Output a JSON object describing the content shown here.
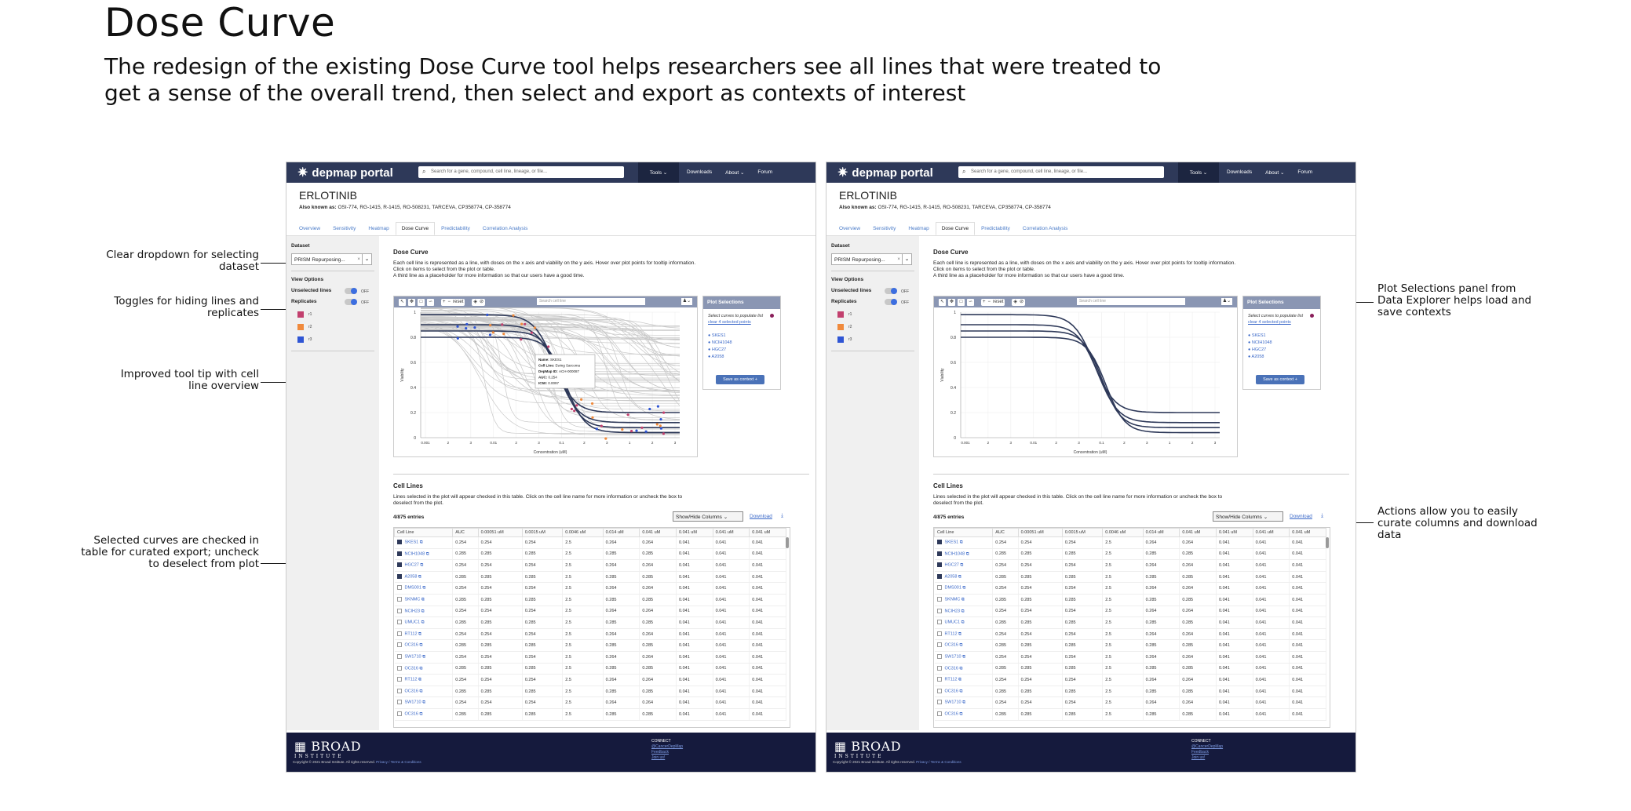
{
  "page": {
    "title": "Dose Curve",
    "subtitle": "The redesign of the existing Dose Curve tool helps researchers see all lines that were treated to get a sense of the overall trend, then select and export as contexts of interest"
  },
  "annotations": {
    "left": [
      "Clear dropdown for selecting dataset",
      "Toggles for hiding lines and replicates",
      "Improved tool tip with cell line overview",
      "Selected curves are checked in table for curated export; uncheck to deselect from plot"
    ],
    "right": [
      "Plot Selections panel from Data Explorer helps load and save contexts",
      "Actions allow you to easily curate columns and download data"
    ]
  },
  "app": {
    "logo": "depmap portal",
    "search_placeholder": "Search for a gene, compound, cell line, lineage, or file...",
    "nav": {
      "tools": "Tools ⌄",
      "downloads": "Downloads",
      "about": "About ⌄",
      "forum": "Forum"
    },
    "compound": "ERLOTINIB",
    "aka_label": "Also known as:",
    "aka_value": "OSI-774, RG-1415, R-1415, RO-508231, TARCEVA, CP358774, CP-358774",
    "tabs": [
      "Overview",
      "Sensitivity",
      "Heatmap",
      "Dose Curve",
      "Predictability",
      "Correlation Analysis"
    ],
    "active_tab": "Dose Curve",
    "sidebar": {
      "dataset_label": "Dataset",
      "dataset_value": "PRISM Repurposing...",
      "view_options": "View Options",
      "unselected_lines": "Unselected lines",
      "replicates": "Replicates",
      "off": "OFF",
      "replicate_items": [
        {
          "label": "r1",
          "color": "#c2406e"
        },
        {
          "label": "r2",
          "color": "#f08a3c"
        },
        {
          "label": "r3",
          "color": "#2f55d4"
        }
      ]
    },
    "main": {
      "heading": "Dose Curve",
      "description": "Each cell line is represented as a line, with doses on the x axis and viability on the y axis. Hover over plot points for tooltip information. Click on items to select from the plot or table.",
      "description2": "A third line as a placeholder for more information so that our users have a good time.",
      "toolbar_reset": "reset",
      "toolbar_search": "Search cell line"
    },
    "plot": {
      "ylabel": "Viability",
      "xlabel": "Concentration (uM)",
      "yticks": [
        "0",
        "0.2",
        "0.4",
        "0.6",
        "0.8",
        "1"
      ],
      "xticks": [
        "0.001",
        "2",
        "3",
        "0.01",
        "2",
        "3",
        "0.1",
        "2",
        "3",
        "1",
        "2",
        "3"
      ]
    },
    "tooltip": {
      "name_label": "Name:",
      "name": "SKES1",
      "cl_label": "Cell Line:",
      "cl": "Ewing Sarcoma",
      "id_label": "DepMap ID:",
      "id": "ACH-000087",
      "auc_label": "AUC:",
      "auc": "0.254",
      "ic50_label": "IC50:",
      "ic50": "0.0097"
    },
    "plot_selections": {
      "title": "Plot Selections",
      "hint": "Select curves to populate list",
      "clear": "clear 4 selected points",
      "items": [
        "SKES1",
        "NCIH1048",
        "HGC27",
        "A2058"
      ],
      "save": "Save as context +"
    },
    "cell_lines": {
      "heading": "Cell Lines",
      "description": "Lines selected in the plot will appear checked in this table. Click on the cell line name for more information or uncheck the box to deselect from the plot.",
      "entries": "4/875 entries",
      "show_hide": "Show/Hide Columns",
      "download": "Download",
      "columns": [
        "Cell Line",
        "AUC",
        "0.00051 uM",
        "0.0015 uM",
        "0.0046 uM",
        "0.014 uM",
        "0.041 uM",
        "0.041 uM",
        "0.041 uM",
        "0.041 uM"
      ],
      "rows": [
        {
          "name": "SKES1",
          "checked": true,
          "vals": [
            "0.254",
            "0.254",
            "0.254",
            "2.5",
            "0.264",
            "0.264",
            "0.041",
            "0.041",
            "0.041"
          ]
        },
        {
          "name": "NCIH1048",
          "checked": true,
          "vals": [
            "0.285",
            "0.285",
            "0.285",
            "2.5",
            "0.285",
            "0.285",
            "0.041",
            "0.041",
            "0.041"
          ]
        },
        {
          "name": "HGC27",
          "checked": true,
          "vals": [
            "0.254",
            "0.254",
            "0.254",
            "2.5",
            "0.264",
            "0.264",
            "0.041",
            "0.041",
            "0.041"
          ]
        },
        {
          "name": "A2058",
          "checked": true,
          "vals": [
            "0.285",
            "0.285",
            "0.285",
            "2.5",
            "0.285",
            "0.285",
            "0.041",
            "0.041",
            "0.041"
          ]
        },
        {
          "name": "DMS001",
          "checked": false,
          "vals": [
            "0.254",
            "0.254",
            "0.254",
            "2.5",
            "0.264",
            "0.264",
            "0.041",
            "0.041",
            "0.041"
          ]
        },
        {
          "name": "SKNMC",
          "checked": false,
          "vals": [
            "0.285",
            "0.285",
            "0.285",
            "2.5",
            "0.285",
            "0.285",
            "0.041",
            "0.041",
            "0.041"
          ]
        },
        {
          "name": "NCIH23",
          "checked": false,
          "vals": [
            "0.254",
            "0.254",
            "0.254",
            "2.5",
            "0.264",
            "0.264",
            "0.041",
            "0.041",
            "0.041"
          ]
        },
        {
          "name": "UMUC1",
          "checked": false,
          "vals": [
            "0.285",
            "0.285",
            "0.285",
            "2.5",
            "0.285",
            "0.285",
            "0.041",
            "0.041",
            "0.041"
          ]
        },
        {
          "name": "RT112",
          "checked": false,
          "vals": [
            "0.254",
            "0.254",
            "0.254",
            "2.5",
            "0.264",
            "0.264",
            "0.041",
            "0.041",
            "0.041"
          ]
        },
        {
          "name": "OC316",
          "checked": false,
          "vals": [
            "0.285",
            "0.285",
            "0.285",
            "2.5",
            "0.285",
            "0.285",
            "0.041",
            "0.041",
            "0.041"
          ]
        },
        {
          "name": "SW1710",
          "checked": false,
          "vals": [
            "0.254",
            "0.254",
            "0.254",
            "2.5",
            "0.264",
            "0.264",
            "0.041",
            "0.041",
            "0.041"
          ]
        },
        {
          "name": "OC316",
          "checked": false,
          "vals": [
            "0.285",
            "0.285",
            "0.285",
            "2.5",
            "0.285",
            "0.285",
            "0.041",
            "0.041",
            "0.041"
          ]
        },
        {
          "name": "RT112",
          "checked": false,
          "vals": [
            "0.254",
            "0.254",
            "0.254",
            "2.5",
            "0.264",
            "0.264",
            "0.041",
            "0.041",
            "0.041"
          ]
        },
        {
          "name": "OC316",
          "checked": false,
          "vals": [
            "0.285",
            "0.285",
            "0.285",
            "2.5",
            "0.285",
            "0.285",
            "0.041",
            "0.041",
            "0.041"
          ]
        },
        {
          "name": "SW1710",
          "checked": false,
          "vals": [
            "0.254",
            "0.254",
            "0.254",
            "2.5",
            "0.264",
            "0.264",
            "0.041",
            "0.041",
            "0.041"
          ]
        },
        {
          "name": "OC316",
          "checked": false,
          "vals": [
            "0.285",
            "0.285",
            "0.285",
            "2.5",
            "0.285",
            "0.285",
            "0.041",
            "0.041",
            "0.041"
          ]
        }
      ]
    },
    "footer": {
      "org": "BROAD",
      "org2": "INSTITUTE",
      "copyright": "Copyright © 2021 Broad Institute. All rights reserved.",
      "privacy": "Privacy / Terms & Conditions",
      "connect": "CONNECT",
      "links": [
        "@CancerDepMap",
        "Feedback",
        "Join us!"
      ]
    }
  },
  "colors": {
    "nav": "#2e3959",
    "footer": "#151a3d",
    "curve_selected": "#2e3959",
    "curve_unselected": "#c8c8c8"
  }
}
